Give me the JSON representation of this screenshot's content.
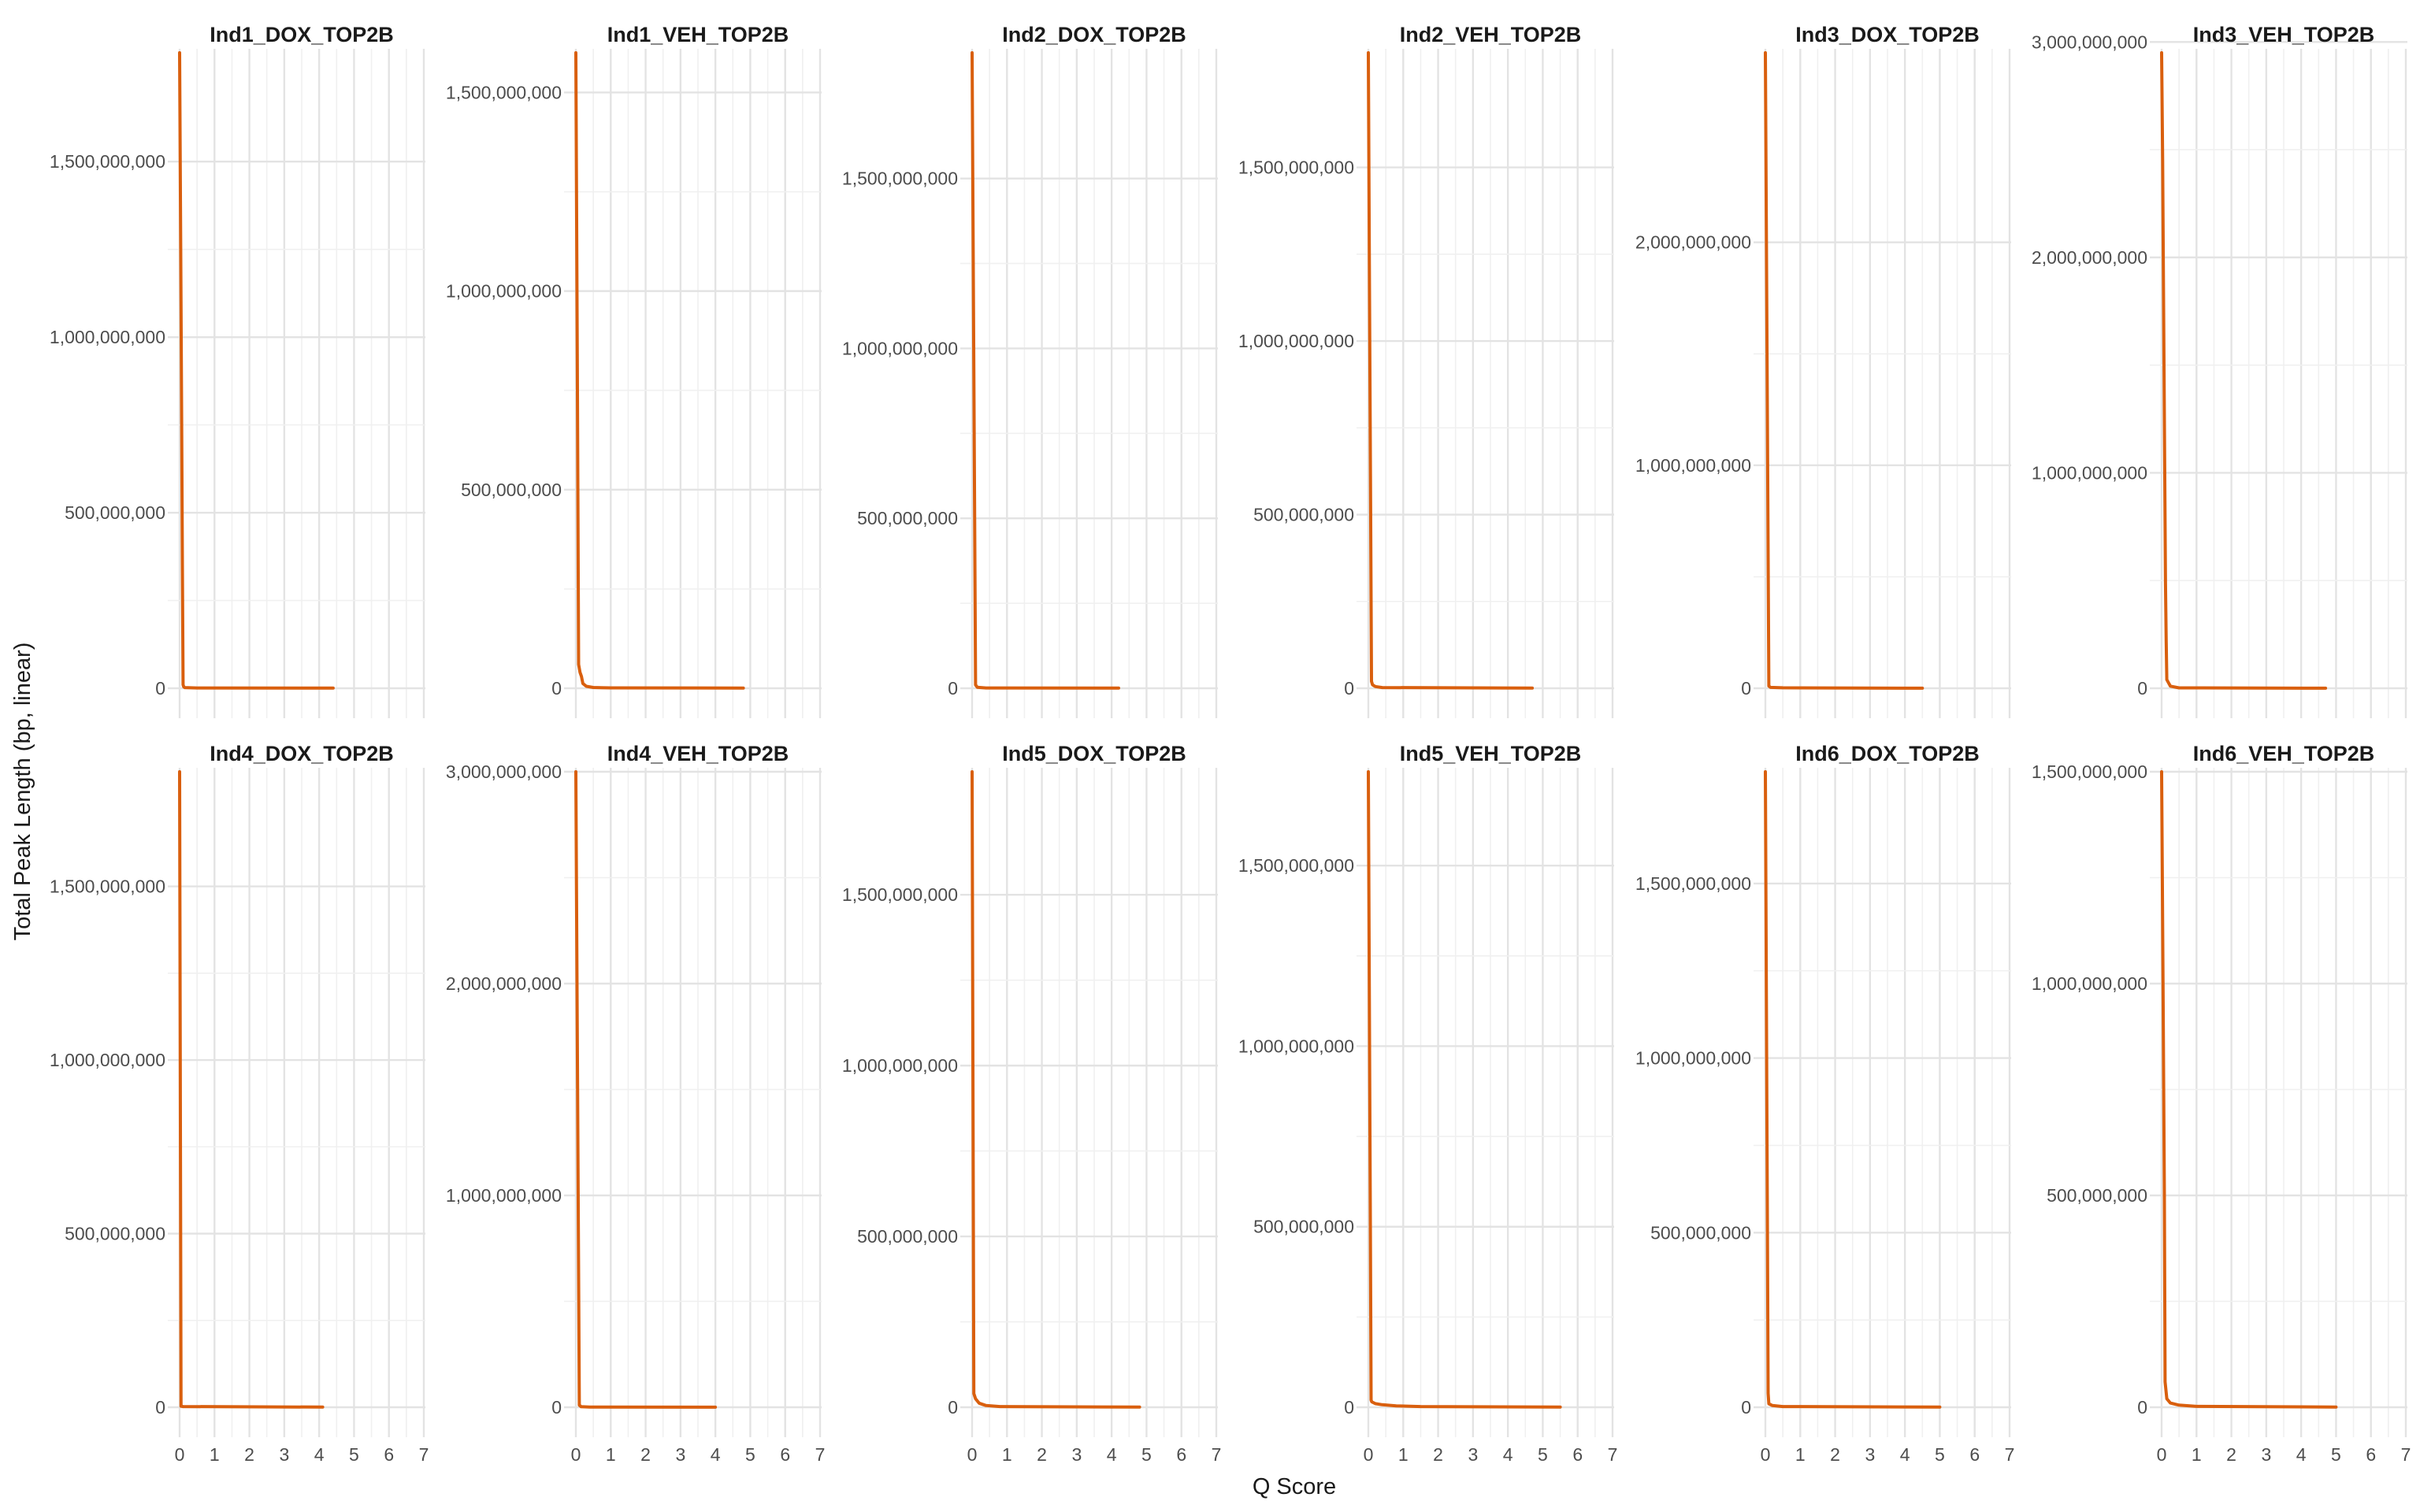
{
  "xlabel": "Q Score",
  "ylabel": "Total Peak Length (bp, linear)",
  "colors": {
    "series": "#D95F0E"
  },
  "chart_data": [
    {
      "type": "line",
      "title": "Ind1_DOX_TOP2B",
      "xlim": [
        0,
        7
      ],
      "ylim": [
        0,
        1810000000
      ],
      "xticks": [
        0,
        1,
        2,
        3,
        4,
        5,
        6,
        7
      ],
      "xtick_labels": [
        "0",
        "1",
        "2",
        "3",
        "4",
        "5",
        "6",
        "7"
      ],
      "yticks": [
        0,
        500000000,
        1000000000,
        1500000000
      ],
      "ytick_labels": [
        "0",
        "500,000,000",
        "1,000,000,000",
        "1,500,000,000"
      ],
      "x": [
        0,
        0.02,
        0.04,
        0.06,
        0.08,
        0.1,
        0.12,
        0.15,
        0.5,
        4.4
      ],
      "y": [
        1810000000,
        1450000000,
        1090000000,
        720000000,
        360000000,
        10000000,
        4000000,
        2000000,
        1000000,
        500000
      ]
    },
    {
      "type": "line",
      "title": "Ind1_VEH_TOP2B",
      "xlim": [
        0,
        7
      ],
      "ylim": [
        0,
        1600000000
      ],
      "xticks": [
        0,
        1,
        2,
        3,
        4,
        5,
        6,
        7
      ],
      "xtick_labels": [
        "0",
        "1",
        "2",
        "3",
        "4",
        "5",
        "6",
        "7"
      ],
      "yticks": [
        0,
        500000000,
        1000000000,
        1500000000
      ],
      "ytick_labels": [
        "0",
        "500,000,000",
        "1,000,000,000",
        "1,500,000,000"
      ],
      "x": [
        0,
        0.04,
        0.08,
        0.12,
        0.16,
        0.2,
        0.3,
        0.5,
        1.0,
        4.8
      ],
      "y": [
        1600000000,
        840000000,
        60000000,
        40000000,
        30000000,
        12000000,
        5000000,
        2000000,
        1000000,
        500000
      ]
    },
    {
      "type": "line",
      "title": "Ind2_DOX_TOP2B",
      "xlim": [
        0,
        7
      ],
      "ylim": [
        0,
        1870000000
      ],
      "xticks": [
        0,
        1,
        2,
        3,
        4,
        5,
        6,
        7
      ],
      "xtick_labels": [
        "0",
        "1",
        "2",
        "3",
        "4",
        "5",
        "6",
        "7"
      ],
      "yticks": [
        0,
        500000000,
        1000000000,
        1500000000
      ],
      "ytick_labels": [
        "0",
        "500,000,000",
        "1,000,000,000",
        "1,500,000,000"
      ],
      "x": [
        0,
        0.05,
        0.1,
        0.15,
        0.4,
        4.2
      ],
      "y": [
        1870000000,
        940000000,
        10000000,
        3000000,
        1000000,
        500000
      ]
    },
    {
      "type": "line",
      "title": "Ind2_VEH_TOP2B",
      "xlim": [
        0,
        7
      ],
      "ylim": [
        0,
        1830000000
      ],
      "xticks": [
        0,
        1,
        2,
        3,
        4,
        5,
        6,
        7
      ],
      "xtick_labels": [
        "0",
        "1",
        "2",
        "3",
        "4",
        "5",
        "6",
        "7"
      ],
      "yticks": [
        0,
        500000000,
        1000000000,
        1500000000
      ],
      "ytick_labels": [
        "0",
        "500,000,000",
        "1,000,000,000",
        "1,500,000,000"
      ],
      "x": [
        0,
        0.03,
        0.06,
        0.09,
        0.12,
        0.2,
        0.4,
        4.7
      ],
      "y": [
        1830000000,
        1220000000,
        610000000,
        20000000,
        10000000,
        5000000,
        2000000,
        500000
      ]
    },
    {
      "type": "line",
      "title": "Ind3_DOX_TOP2B",
      "xlim": [
        0,
        7
      ],
      "ylim": [
        0,
        2850000000
      ],
      "xticks": [
        0,
        1,
        2,
        3,
        4,
        5,
        6,
        7
      ],
      "xtick_labels": [
        "0",
        "1",
        "2",
        "3",
        "4",
        "5",
        "6",
        "7"
      ],
      "yticks": [
        0,
        1000000000,
        2000000000
      ],
      "ytick_labels": [
        "0",
        "1,000,000,000",
        "2,000,000,000"
      ],
      "x": [
        0,
        0.05,
        0.1,
        0.15,
        0.5,
        4.5
      ],
      "y": [
        2850000000,
        1450000000,
        10000000,
        4000000,
        2000000,
        500000
      ]
    },
    {
      "type": "line",
      "title": "Ind3_VEH_TOP2B",
      "xlim": [
        0,
        7
      ],
      "ylim": [
        0,
        2950000000
      ],
      "xticks": [
        0,
        1,
        2,
        3,
        4,
        5,
        6,
        7
      ],
      "xtick_labels": [
        "0",
        "1",
        "2",
        "3",
        "4",
        "5",
        "6",
        "7"
      ],
      "yticks": [
        0,
        1000000000,
        2000000000,
        3000000000
      ],
      "ytick_labels": [
        "0",
        "1,000,000,000",
        "2,000,000,000",
        "3,000,000,000"
      ],
      "x": [
        0,
        0.03,
        0.05,
        0.07,
        0.09,
        0.11,
        0.13,
        0.15,
        0.25,
        0.5,
        4.7
      ],
      "y": [
        2950000000,
        2450000000,
        1950000000,
        1470000000,
        980000000,
        490000000,
        220000000,
        40000000,
        10000000,
        2000000,
        500000
      ]
    },
    {
      "type": "line",
      "title": "Ind4_DOX_TOP2B",
      "xlim": [
        0,
        7
      ],
      "ylim": [
        0,
        1830000000
      ],
      "xticks": [
        0,
        1,
        2,
        3,
        4,
        5,
        6,
        7
      ],
      "xtick_labels": [
        "0",
        "1",
        "2",
        "3",
        "4",
        "5",
        "6",
        "7"
      ],
      "yticks": [
        0,
        500000000,
        1000000000,
        1500000000
      ],
      "ytick_labels": [
        "0",
        "500,000,000",
        "1,000,000,000",
        "1,500,000,000"
      ],
      "x": [
        0,
        0.04,
        0.1,
        4.1
      ],
      "y": [
        1830000000,
        3000000,
        2000000,
        500000
      ]
    },
    {
      "type": "line",
      "title": "Ind4_VEH_TOP2B",
      "xlim": [
        0,
        7
      ],
      "ylim": [
        0,
        3000000000
      ],
      "xticks": [
        0,
        1,
        2,
        3,
        4,
        5,
        6,
        7
      ],
      "xtick_labels": [
        "0",
        "1",
        "2",
        "3",
        "4",
        "5",
        "6",
        "7"
      ],
      "yticks": [
        0,
        1000000000,
        2000000000,
        3000000000
      ],
      "ytick_labels": [
        "0",
        "1,000,000,000",
        "2,000,000,000",
        "3,000,000,000"
      ],
      "x": [
        0,
        0.05,
        0.1,
        0.15,
        0.4,
        4.0
      ],
      "y": [
        3000000000,
        1500000000,
        10000000,
        3000000,
        1000000,
        500000
      ]
    },
    {
      "type": "line",
      "title": "Ind5_DOX_TOP2B",
      "xlim": [
        0,
        7
      ],
      "ylim": [
        0,
        1860000000
      ],
      "xticks": [
        0,
        1,
        2,
        3,
        4,
        5,
        6,
        7
      ],
      "xtick_labels": [
        "0",
        "1",
        "2",
        "3",
        "4",
        "5",
        "6",
        "7"
      ],
      "yticks": [
        0,
        500000000,
        1000000000,
        1500000000
      ],
      "ytick_labels": [
        "0",
        "500,000,000",
        "1,000,000,000",
        "1,500,000,000"
      ],
      "x": [
        0,
        0.05,
        0.1,
        0.2,
        0.4,
        0.8,
        4.8
      ],
      "y": [
        1860000000,
        40000000,
        25000000,
        12000000,
        5000000,
        2000000,
        500000
      ]
    },
    {
      "type": "line",
      "title": "Ind5_VEH_TOP2B",
      "xlim": [
        0,
        7
      ],
      "ylim": [
        0,
        1760000000
      ],
      "xticks": [
        0,
        1,
        2,
        3,
        4,
        5,
        6,
        7
      ],
      "xtick_labels": [
        "0",
        "1",
        "2",
        "3",
        "4",
        "5",
        "6",
        "7"
      ],
      "yticks": [
        0,
        500000000,
        1000000000,
        1500000000
      ],
      "ytick_labels": [
        "0",
        "500,000,000",
        "1,000,000,000",
        "1,500,000,000"
      ],
      "x": [
        0,
        0.02,
        0.04,
        0.06,
        0.08,
        0.1,
        0.2,
        0.4,
        0.8,
        1.5,
        5.5
      ],
      "y": [
        1760000000,
        1320000000,
        880000000,
        440000000,
        20000000,
        15000000,
        10000000,
        7000000,
        4000000,
        2000000,
        500000
      ]
    },
    {
      "type": "line",
      "title": "Ind6_DOX_TOP2B",
      "xlim": [
        0,
        7
      ],
      "ylim": [
        0,
        1820000000
      ],
      "xticks": [
        0,
        1,
        2,
        3,
        4,
        5,
        6,
        7
      ],
      "xtick_labels": [
        "0",
        "1",
        "2",
        "3",
        "4",
        "5",
        "6",
        "7"
      ],
      "yticks": [
        0,
        500000000,
        1000000000,
        1500000000
      ],
      "ytick_labels": [
        "0",
        "500,000,000",
        "1,000,000,000",
        "1,500,000,000"
      ],
      "x": [
        0,
        0.02,
        0.04,
        0.06,
        0.08,
        0.1,
        0.2,
        0.5,
        5.0
      ],
      "y": [
        1820000000,
        1370000000,
        910000000,
        460000000,
        40000000,
        10000000,
        5000000,
        2000000,
        500000
      ]
    },
    {
      "type": "line",
      "title": "Ind6_VEH_TOP2B",
      "xlim": [
        0,
        7
      ],
      "ylim": [
        0,
        1500000000
      ],
      "xticks": [
        0,
        1,
        2,
        3,
        4,
        5,
        6,
        7
      ],
      "xtick_labels": [
        "0",
        "1",
        "2",
        "3",
        "4",
        "5",
        "6",
        "7"
      ],
      "yticks": [
        0,
        500000000,
        1000000000,
        1500000000
      ],
      "ytick_labels": [
        "0",
        "500,000,000",
        "1,000,000,000",
        "1,500,000,000"
      ],
      "x": [
        0,
        0.04,
        0.08,
        0.1,
        0.15,
        0.25,
        0.5,
        1.0,
        5.0
      ],
      "y": [
        1500000000,
        1000000000,
        500000000,
        60000000,
        20000000,
        10000000,
        5000000,
        2000000,
        500000
      ]
    }
  ]
}
